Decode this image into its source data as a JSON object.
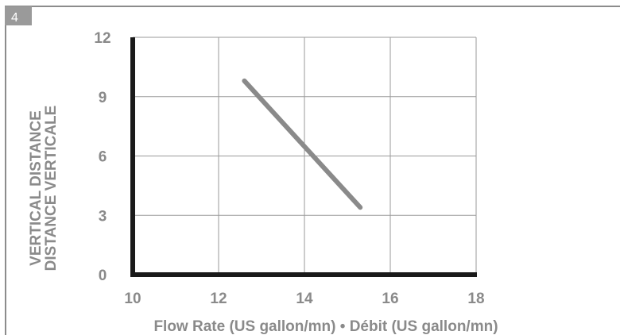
{
  "figure_number": "4",
  "colors": {
    "frame": "#8c8c8c",
    "badge": "#9a9a9a",
    "grid": "#9a9a9a",
    "axis": "#1a1a1a",
    "line": "#8a8a8a",
    "text": "#8a8a8a"
  },
  "chart_data": {
    "type": "line",
    "xlabel": "Flow Rate (US gallon/mn) • Débit (US gallon/mn)",
    "ylabel_lines": [
      "VERTICAL DISTANCE",
      "DISTANCE VERTICALE"
    ],
    "xlim": [
      10,
      18
    ],
    "ylim": [
      0,
      12
    ],
    "x_ticks": [
      "10",
      "12",
      "14",
      "16",
      "18"
    ],
    "y_ticks": [
      "0",
      "3",
      "6",
      "9",
      "12"
    ],
    "grid": true,
    "series": [
      {
        "x": [
          12.6,
          15.3
        ],
        "y": [
          9.8,
          3.4
        ]
      }
    ]
  }
}
